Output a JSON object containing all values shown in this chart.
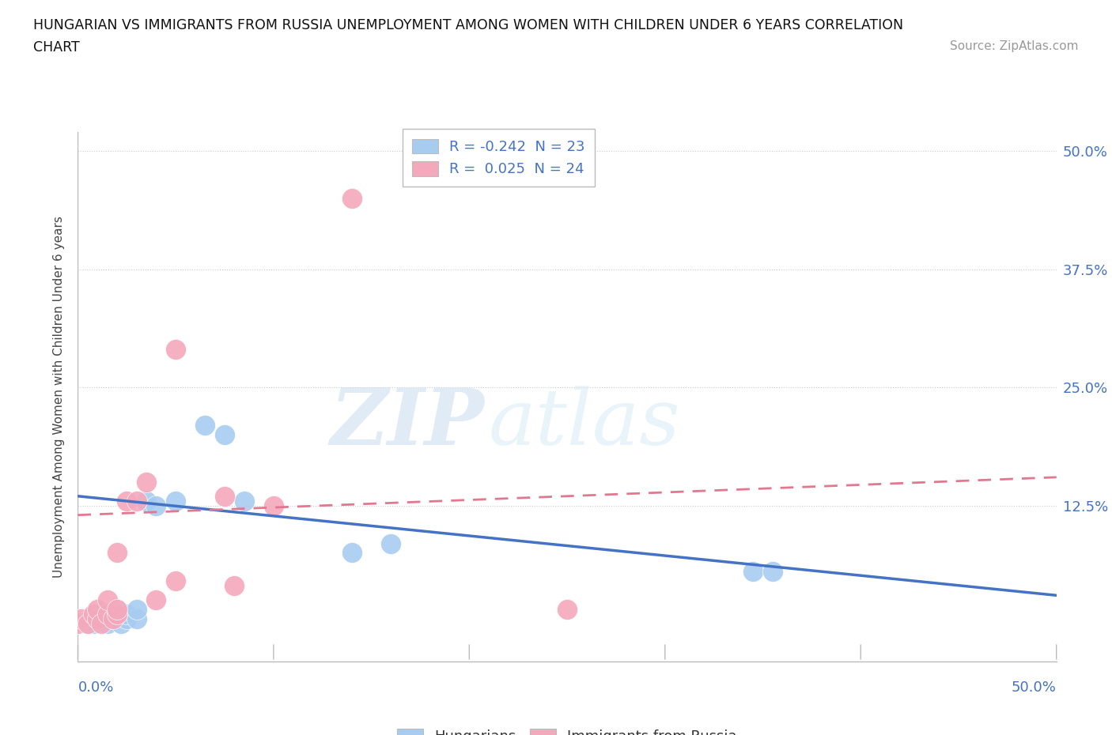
{
  "title_line1": "HUNGARIAN VS IMMIGRANTS FROM RUSSIA UNEMPLOYMENT AMONG WOMEN WITH CHILDREN UNDER 6 YEARS CORRELATION",
  "title_line2": "CHART",
  "source": "Source: ZipAtlas.com",
  "ylabel": "Unemployment Among Women with Children Under 6 years",
  "legend_r1": "R = -0.242  N = 23",
  "legend_r2": "R =  0.025  N = 24",
  "color_hungarian": "#A8CCF0",
  "color_russia": "#F4A8BC",
  "color_line_hungarian": "#4472C4",
  "color_line_russia": "#E07890",
  "watermark_zip": "ZIP",
  "watermark_atlas": "atlas",
  "xlim": [
    0.0,
    0.5
  ],
  "ylim": [
    -0.04,
    0.52
  ],
  "ytick_vals": [
    0.0,
    0.125,
    0.25,
    0.375,
    0.5
  ],
  "ytick_labels_right": [
    "",
    "12.5%",
    "25.0%",
    "37.5%",
    "50.0%"
  ],
  "hungarian_x": [
    0.005,
    0.008,
    0.01,
    0.012,
    0.015,
    0.018,
    0.02,
    0.02,
    0.022,
    0.025,
    0.025,
    0.03,
    0.03,
    0.035,
    0.04,
    0.05,
    0.065,
    0.075,
    0.085,
    0.14,
    0.16,
    0.345,
    0.355
  ],
  "hungarian_y": [
    0.0,
    0.0,
    0.005,
    0.01,
    0.0,
    0.005,
    0.01,
    0.015,
    0.0,
    0.005,
    0.01,
    0.005,
    0.015,
    0.13,
    0.125,
    0.13,
    0.21,
    0.2,
    0.13,
    0.075,
    0.085,
    0.055,
    0.055
  ],
  "russia_x": [
    0.0,
    0.002,
    0.005,
    0.008,
    0.01,
    0.01,
    0.012,
    0.015,
    0.015,
    0.018,
    0.02,
    0.02,
    0.02,
    0.025,
    0.03,
    0.035,
    0.04,
    0.05,
    0.05,
    0.075,
    0.08,
    0.1,
    0.14,
    0.25
  ],
  "russia_y": [
    0.0,
    0.005,
    0.0,
    0.01,
    0.005,
    0.015,
    0.0,
    0.01,
    0.025,
    0.005,
    0.075,
    0.01,
    0.015,
    0.13,
    0.13,
    0.15,
    0.025,
    0.045,
    0.29,
    0.135,
    0.04,
    0.125,
    0.45,
    0.015
  ],
  "line_h_x0": 0.0,
  "line_h_x1": 0.5,
  "line_h_y0": 0.135,
  "line_h_y1": 0.03,
  "line_r_x0": 0.0,
  "line_r_x1": 0.5,
  "line_r_y0": 0.115,
  "line_r_y1": 0.155
}
